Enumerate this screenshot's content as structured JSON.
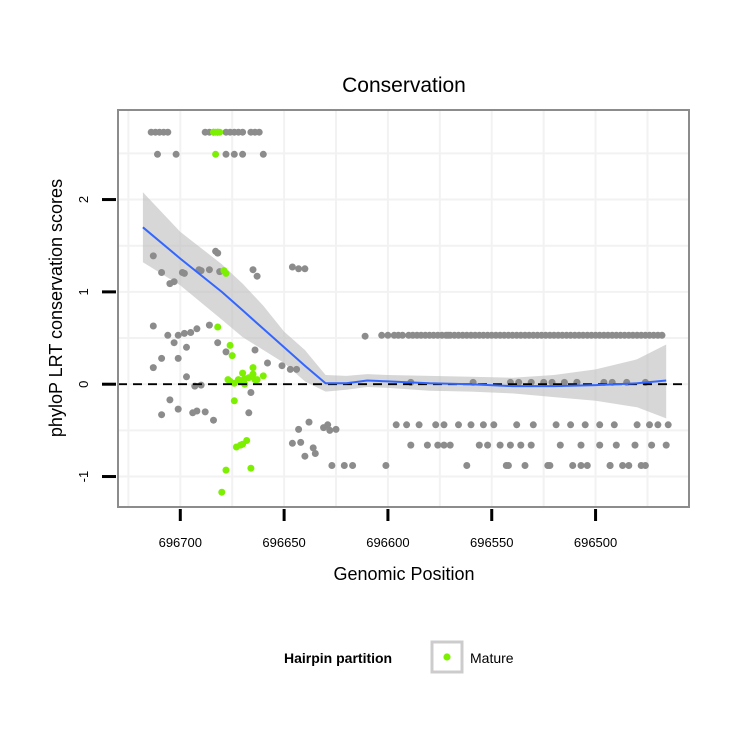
{
  "chart_data": {
    "type": "scatter",
    "title": "Conservation",
    "xlabel": "Genomic Position",
    "ylabel": "phyloP LRT conservation scores",
    "x_reversed": true,
    "xlim": [
      696730,
      696455
    ],
    "ylim": [
      -1.33,
      2.97
    ],
    "x_ticks": [
      696700,
      696650,
      696600,
      696550,
      696500
    ],
    "x_tick_labels": [
      "696700",
      "696650",
      "696600",
      "696550",
      "696500"
    ],
    "y_ticks": [
      2,
      1,
      0,
      -1
    ],
    "y_tick_labels": [
      "2",
      "1",
      "0",
      "-1"
    ],
    "reference_line_y": 0,
    "colors": {
      "other": "#8c8c8c",
      "mature": "#7cf000",
      "smooth": "#3366ff",
      "ribbon": "#bdbdbd",
      "panel_border": "#8c8c8c",
      "grid": "#f2f2f2"
    },
    "series": [
      {
        "name": "Other",
        "in_legend": false,
        "x": [
          696714,
          696712,
          696710,
          696708,
          696706,
          696688,
          696686,
          696684,
          696682,
          696678,
          696676,
          696674,
          696672,
          696670,
          696666,
          696664,
          696662,
          696711,
          696702,
          696678,
          696674,
          696670,
          696660,
          696713,
          696709,
          696703,
          696698,
          696691,
          696686,
          696682,
          696663,
          696713,
          696706,
          696698,
          696692,
          696686,
          696682,
          696678,
          696664,
          696658,
          696651,
          696647,
          696644,
          696713,
          696709,
          696701,
          696697,
          696693,
          696690,
          696666,
          696703,
          696697,
          696709,
          696705,
          696701,
          696694,
          696692,
          696688,
          696684,
          696667,
          696705,
          696699,
          696701,
          696695,
          696690,
          696681,
          696683,
          696643,
          696640,
          696646,
          696665,
          696642,
          696640,
          696636,
          696635,
          696646,
          696643,
          696638,
          696631,
          696629,
          696628,
          696625,
          696621,
          696617,
          696611,
          696571,
          696603,
          696600,
          696597,
          696595,
          696593,
          696590,
          696588,
          696586,
          696584,
          696582,
          696580,
          696578,
          696576,
          696574,
          696572,
          696570,
          696568,
          696566,
          696564,
          696562,
          696560,
          696558,
          696556,
          696554,
          696552,
          696550,
          696548,
          696546,
          696544,
          696542,
          696540,
          696538,
          696536,
          696534,
          696532,
          696530,
          696528,
          696526,
          696524,
          696522,
          696520,
          696518,
          696516,
          696514,
          696512,
          696510,
          696508,
          696506,
          696504,
          696502,
          696500,
          696498,
          696496,
          696494,
          696492,
          696490,
          696488,
          696486,
          696484,
          696482,
          696480,
          696478,
          696476,
          696474,
          696472,
          696470,
          696468,
          696531,
          696525,
          696521,
          696515,
          696509,
          696492,
          696589,
          696559,
          696541,
          696537,
          696509,
          696496,
          696485,
          696476,
          696596,
          696591,
          696585,
          696577,
          696573,
          696566,
          696560,
          696554,
          696549,
          696538,
          696530,
          696519,
          696512,
          696505,
          696498,
          696491,
          696480,
          696474,
          696470,
          696465,
          696589,
          696581,
          696576,
          696573,
          696570,
          696556,
          696552,
          696546,
          696541,
          696536,
          696531,
          696517,
          696507,
          696498,
          696490,
          696481,
          696473,
          696466,
          696543,
          696534,
          696523,
          696511,
          696504,
          696493,
          696478,
          696484,
          696627,
          696601,
          696562,
          696542,
          696522,
          696507,
          696493,
          696487,
          696476
        ],
        "y": [
          2.73,
          2.73,
          2.73,
          2.73,
          2.73,
          2.73,
          2.73,
          2.73,
          2.73,
          2.73,
          2.73,
          2.73,
          2.73,
          2.73,
          2.73,
          2.73,
          2.73,
          2.49,
          2.49,
          2.49,
          2.49,
          2.49,
          2.49,
          1.39,
          1.21,
          1.11,
          1.2,
          1.24,
          1.24,
          1.42,
          1.17,
          0.63,
          0.53,
          0.55,
          0.6,
          0.64,
          0.45,
          0.35,
          0.37,
          0.23,
          0.2,
          0.16,
          0.16,
          0.18,
          0.28,
          0.28,
          0.08,
          -0.02,
          -0.01,
          -0.09,
          0.45,
          0.4,
          -0.33,
          -0.17,
          -0.27,
          -0.31,
          -0.29,
          -0.3,
          -0.39,
          -0.31,
          1.09,
          1.21,
          0.53,
          0.56,
          1.23,
          1.22,
          1.44,
          1.25,
          1.25,
          1.27,
          1.24,
          -0.63,
          -0.78,
          -0.69,
          -0.75,
          -0.64,
          -0.49,
          -0.41,
          -0.47,
          -0.44,
          -0.5,
          -0.49,
          -0.88,
          -0.88,
          0.52,
          0.53,
          0.53,
          0.53,
          0.53,
          0.53,
          0.53,
          0.53,
          0.53,
          0.53,
          0.53,
          0.53,
          0.53,
          0.53,
          0.53,
          0.53,
          0.53,
          0.53,
          0.53,
          0.53,
          0.53,
          0.53,
          0.53,
          0.53,
          0.53,
          0.53,
          0.53,
          0.53,
          0.53,
          0.53,
          0.53,
          0.53,
          0.53,
          0.53,
          0.53,
          0.53,
          0.53,
          0.53,
          0.53,
          0.53,
          0.53,
          0.53,
          0.53,
          0.53,
          0.53,
          0.53,
          0.53,
          0.53,
          0.53,
          0.53,
          0.53,
          0.53,
          0.53,
          0.53,
          0.53,
          0.53,
          0.53,
          0.53,
          0.53,
          0.53,
          0.53,
          0.53,
          0.53,
          0.53,
          0.53,
          0.53,
          0.53,
          0.53,
          0.53,
          0.02,
          0.02,
          0.02,
          0.02,
          0.02,
          0.02,
          0.02,
          0.02,
          0.02,
          0.02,
          0.02,
          0.02,
          0.02,
          0.02,
          -0.44,
          -0.44,
          -0.44,
          -0.44,
          -0.44,
          -0.44,
          -0.44,
          -0.44,
          -0.44,
          -0.44,
          -0.44,
          -0.44,
          -0.44,
          -0.44,
          -0.44,
          -0.44,
          -0.44,
          -0.44,
          -0.44,
          -0.44,
          -0.66,
          -0.66,
          -0.66,
          -0.66,
          -0.66,
          -0.66,
          -0.66,
          -0.66,
          -0.66,
          -0.66,
          -0.66,
          -0.66,
          -0.66,
          -0.66,
          -0.66,
          -0.66,
          -0.66,
          -0.66,
          -0.88,
          -0.88,
          -0.88,
          -0.88,
          -0.88,
          -0.88,
          -0.88,
          -0.88,
          -0.88,
          -0.88,
          -0.88,
          -0.88,
          -0.88,
          -0.88,
          -0.88,
          -0.88,
          -0.88
        ]
      },
      {
        "name": "Mature",
        "in_legend": true,
        "x": [
          696684,
          696683,
          696682,
          696681,
          696683,
          696679,
          696678,
          696676,
          696675,
          696671,
          696670,
          696669,
          696667,
          696665,
          696664,
          696663,
          696660,
          696671,
          696669,
          696676,
          696677,
          696674,
          696672,
          696665,
          696674,
          696670,
          696680,
          696678,
          696682,
          696671,
          696673,
          696668,
          696666
        ],
        "y": [
          2.73,
          2.73,
          2.73,
          2.73,
          2.49,
          1.23,
          1.2,
          0.42,
          0.31,
          0.03,
          0.12,
          0.06,
          0.07,
          0.11,
          0.05,
          0.05,
          0.09,
          0.04,
          0.0,
          0.03,
          0.05,
          0.01,
          0.05,
          0.18,
          -0.18,
          -0.65,
          -1.17,
          -0.93,
          0.62,
          -0.66,
          -0.68,
          -0.61,
          -0.91
        ]
      }
    ],
    "smooth": {
      "x": [
        696718,
        696700,
        696680,
        696670,
        696660,
        696650,
        696640,
        696630,
        696620,
        696610,
        696600,
        696580,
        696560,
        696540,
        696520,
        696500,
        696480,
        696466
      ],
      "y": [
        1.7,
        1.36,
        1.0,
        0.8,
        0.6,
        0.4,
        0.2,
        0.01,
        0.01,
        0.04,
        0.03,
        0.01,
        0.0,
        -0.02,
        -0.02,
        -0.01,
        0.01,
        0.04
      ],
      "ymin": [
        1.32,
        1.07,
        0.7,
        0.51,
        0.37,
        0.23,
        0.03,
        -0.08,
        -0.06,
        -0.03,
        -0.04,
        -0.07,
        -0.08,
        -0.1,
        -0.14,
        -0.18,
        -0.25,
        -0.37
      ],
      "ymax": [
        2.08,
        1.65,
        1.3,
        1.09,
        0.85,
        0.57,
        0.37,
        0.1,
        0.09,
        0.11,
        0.1,
        0.09,
        0.08,
        0.07,
        0.1,
        0.16,
        0.27,
        0.43
      ]
    },
    "legend": {
      "title": "Hairpin partition",
      "entries": [
        "Mature"
      ],
      "placement": "bottom"
    }
  }
}
